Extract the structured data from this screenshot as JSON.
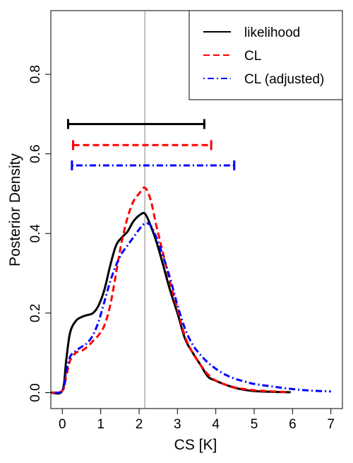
{
  "chart_data": {
    "type": "line",
    "title": "",
    "xlabel": "CS [K]",
    "ylabel": "Posterior Density",
    "xlim": [
      -0.3,
      7.3
    ],
    "ylim": [
      -0.04,
      0.96
    ],
    "x_ticks": [
      0,
      1,
      2,
      3,
      4,
      5,
      6,
      7
    ],
    "x_tick_labels": [
      "0",
      "1",
      "2",
      "3",
      "4",
      "5",
      "6",
      "7"
    ],
    "y_ticks": [
      0.0,
      0.2,
      0.4,
      0.6,
      0.8
    ],
    "y_tick_labels": [
      "0.0",
      "0.2",
      "0.4",
      "0.6",
      "0.8"
    ],
    "grid": false,
    "legend_position": "top-right",
    "vertical_reference_line": {
      "x": 2.15,
      "color": "#808080"
    },
    "series": [
      {
        "name": "likelihood",
        "color": "#000000",
        "style": "solid",
        "x": [
          -0.3,
          0.0,
          0.1,
          0.2,
          0.35,
          0.5,
          0.65,
          0.8,
          0.95,
          1.1,
          1.25,
          1.4,
          1.55,
          1.7,
          1.85,
          2.0,
          2.15,
          2.3,
          2.45,
          2.6,
          2.8,
          3.0,
          3.2,
          3.4,
          3.6,
          3.8,
          4.0,
          4.25,
          4.5,
          4.75,
          5.0,
          5.5,
          5.95
        ],
        "y": [
          0.0,
          0.005,
          0.08,
          0.15,
          0.18,
          0.19,
          0.195,
          0.2,
          0.22,
          0.26,
          0.32,
          0.37,
          0.39,
          0.405,
          0.43,
          0.445,
          0.45,
          0.42,
          0.38,
          0.33,
          0.26,
          0.2,
          0.135,
          0.1,
          0.07,
          0.04,
          0.03,
          0.02,
          0.012,
          0.007,
          0.004,
          0.002,
          0.001
        ]
      },
      {
        "name": "CL",
        "color": "#ff0000",
        "style": "dashed",
        "x": [
          -0.3,
          0.0,
          0.1,
          0.2,
          0.35,
          0.5,
          0.65,
          0.8,
          0.95,
          1.1,
          1.25,
          1.4,
          1.55,
          1.7,
          1.85,
          2.0,
          2.15,
          2.3,
          2.45,
          2.6,
          2.8,
          3.0,
          3.2,
          3.4,
          3.6,
          3.8,
          4.0,
          4.25,
          4.5,
          4.75,
          5.0,
          5.5,
          5.9
        ],
        "y": [
          0.0,
          0.005,
          0.04,
          0.08,
          0.1,
          0.105,
          0.115,
          0.13,
          0.145,
          0.17,
          0.22,
          0.3,
          0.38,
          0.44,
          0.48,
          0.5,
          0.515,
          0.485,
          0.42,
          0.36,
          0.28,
          0.21,
          0.14,
          0.1,
          0.07,
          0.045,
          0.03,
          0.02,
          0.013,
          0.009,
          0.006,
          0.003,
          0.001
        ]
      },
      {
        "name": "CL (adjusted)",
        "color": "#0000ff",
        "style": "dot-dash",
        "x": [
          -0.3,
          0.0,
          0.1,
          0.2,
          0.35,
          0.5,
          0.65,
          0.8,
          0.95,
          1.1,
          1.25,
          1.4,
          1.55,
          1.7,
          1.85,
          2.0,
          2.15,
          2.3,
          2.45,
          2.6,
          2.8,
          3.0,
          3.2,
          3.4,
          3.6,
          3.8,
          4.0,
          4.25,
          4.5,
          4.75,
          5.0,
          5.5,
          6.0,
          6.5,
          7.0
        ],
        "y": [
          0.0,
          0.005,
          0.05,
          0.09,
          0.105,
          0.115,
          0.125,
          0.145,
          0.18,
          0.23,
          0.28,
          0.32,
          0.35,
          0.37,
          0.39,
          0.41,
          0.425,
          0.42,
          0.39,
          0.35,
          0.29,
          0.22,
          0.16,
          0.12,
          0.095,
          0.075,
          0.06,
          0.045,
          0.035,
          0.028,
          0.022,
          0.015,
          0.009,
          0.005,
          0.003
        ]
      }
    ],
    "intervals": [
      {
        "series": "likelihood",
        "lower": 0.15,
        "upper": 3.7,
        "y": 0.675
      },
      {
        "series": "CL",
        "lower": 0.28,
        "upper": 3.88,
        "y": 0.622
      },
      {
        "series": "CL (adjusted)",
        "lower": 0.25,
        "upper": 4.48,
        "y": 0.571
      }
    ]
  }
}
